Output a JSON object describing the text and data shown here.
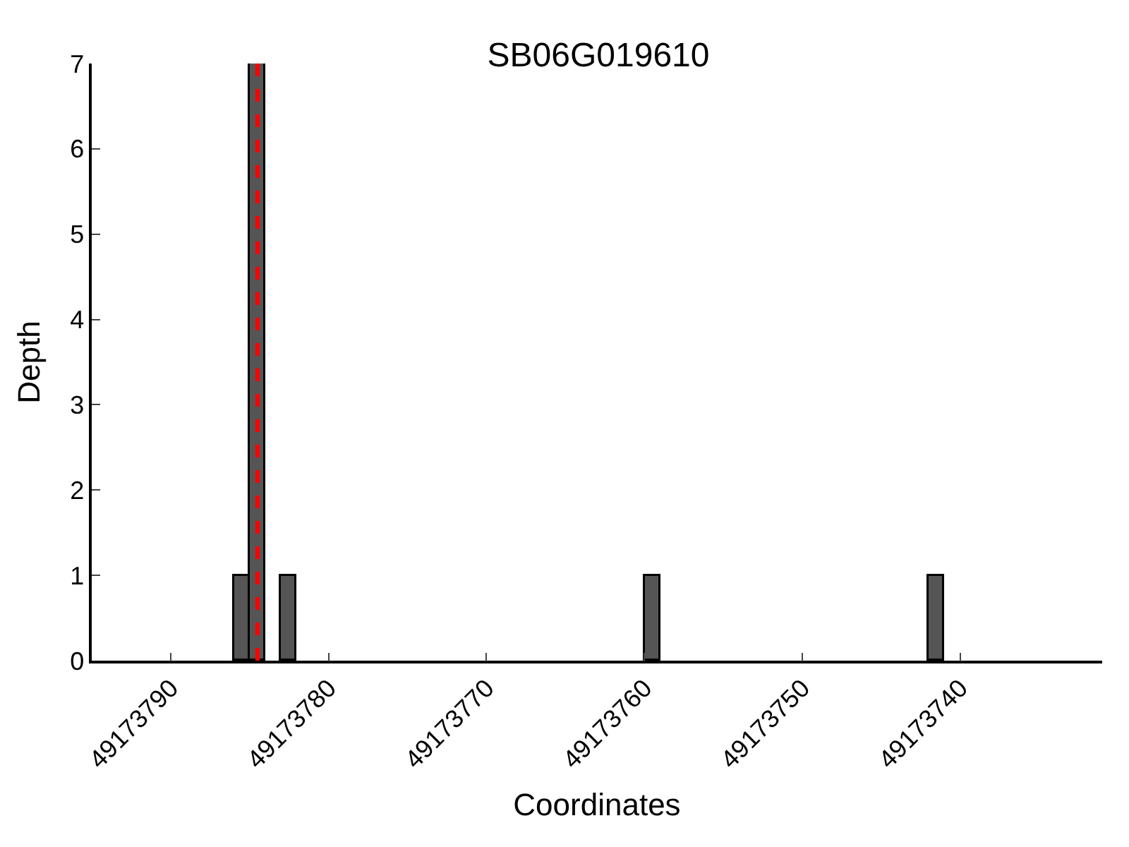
{
  "chart_data": {
    "type": "bar",
    "title": "SB06G019610",
    "xlabel": "Coordinates",
    "ylabel": "Depth",
    "x": [
      49173785.5,
      49173784.5,
      49173782.5,
      49173759.5,
      49173741.5
    ],
    "values": [
      1,
      7,
      1,
      1,
      1
    ],
    "color": "#555555",
    "xlim": [
      49173795,
      49173731
    ],
    "xticks": [
      49173790,
      49173780,
      49173770,
      49173760,
      49173750,
      49173740
    ],
    "ylim": [
      0,
      7
    ],
    "yticks": [
      0,
      1,
      2,
      3,
      4,
      5,
      6,
      7
    ],
    "ref_lines": [
      {
        "axis": "x",
        "value": 49173784.5,
        "color": "#ff0000",
        "line_style": "dashed"
      }
    ],
    "legend": false
  }
}
